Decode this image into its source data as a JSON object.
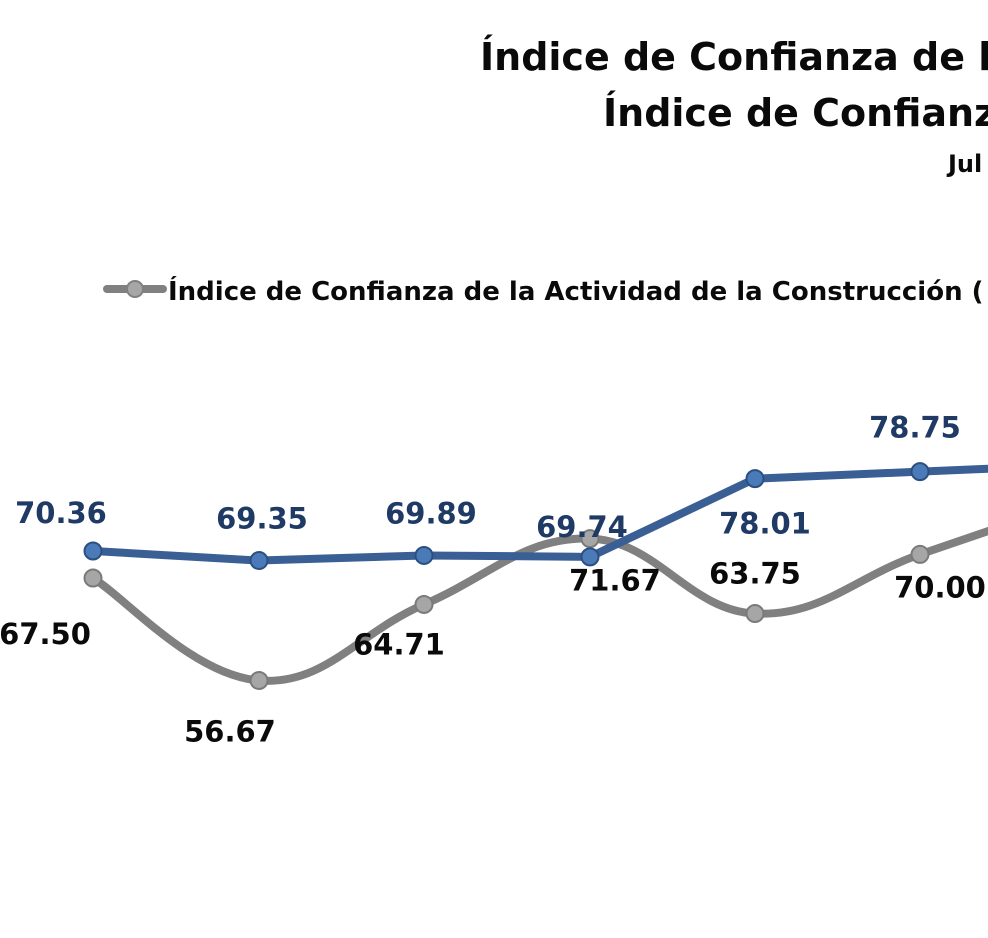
{
  "chart_data": {
    "type": "line",
    "title": "Índice de Confianza de la",
    "subtitle": "Índice de Confianza",
    "period_label": "Jul",
    "categories": [
      "",
      "",
      "",
      "",
      "",
      "",
      ""
    ],
    "ylim": [
      50,
      85
    ],
    "grid": false,
    "legend_position": "top",
    "series": [
      {
        "name": "Índice de Confianza de la Actividad de la Construcción (",
        "color": "#808080",
        "values": [
          67.5,
          56.67,
          64.71,
          71.67,
          63.75,
          70.0,
          76.0
        ],
        "labels": [
          "67.50",
          "56.67",
          "64.71",
          "71.67",
          "63.75",
          "70.00",
          ""
        ]
      },
      {
        "name": "",
        "color": "#3a5f94",
        "values": [
          70.36,
          69.35,
          69.89,
          69.74,
          78.01,
          78.75,
          79.5
        ],
        "labels": [
          "70.36",
          "69.35",
          "69.89",
          "69.74",
          "78.01",
          "78.75",
          ""
        ]
      }
    ]
  }
}
